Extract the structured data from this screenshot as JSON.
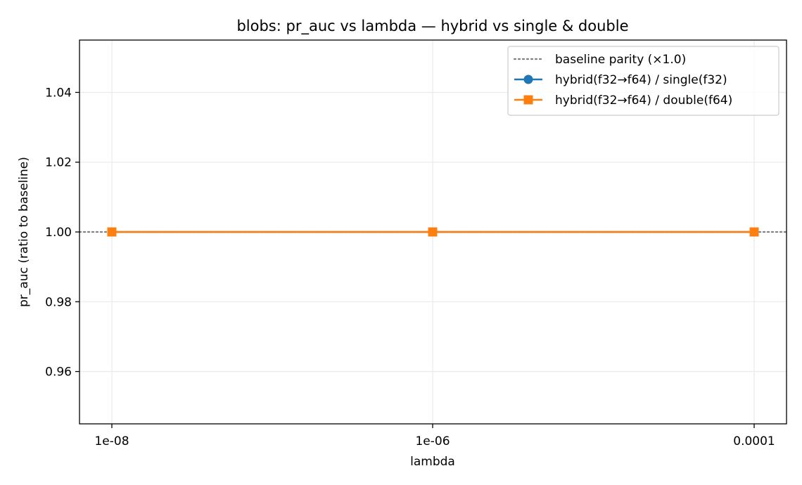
{
  "chart_data": {
    "type": "line",
    "title": "blobs: pr_auc vs lambda — hybrid vs single & double",
    "xlabel": "lambda",
    "ylabel": "pr_auc (ratio to baseline)",
    "categories": [
      "1e-08",
      "1e-06",
      "0.0001"
    ],
    "ylim": [
      0.945,
      1.055
    ],
    "yticks": [
      0.96,
      0.98,
      1.0,
      1.02,
      1.04
    ],
    "ytick_labels": [
      "0.96",
      "0.98",
      "1.00",
      "1.02",
      "1.04"
    ],
    "grid": true,
    "legend_position": "top-right",
    "reference_line": {
      "name": "baseline parity (×1.0)",
      "value": 1.0,
      "color": "#808080",
      "style": "dotted"
    },
    "series": [
      {
        "name": "hybrid(f32→f64) / single(f32)",
        "values": [
          1.0,
          1.0,
          1.0
        ],
        "color": "#1f77b4",
        "marker": "circle"
      },
      {
        "name": "hybrid(f32→f64) / double(f64)",
        "values": [
          1.0,
          1.0,
          1.0
        ],
        "color": "#ff7f0e",
        "marker": "square"
      }
    ]
  }
}
